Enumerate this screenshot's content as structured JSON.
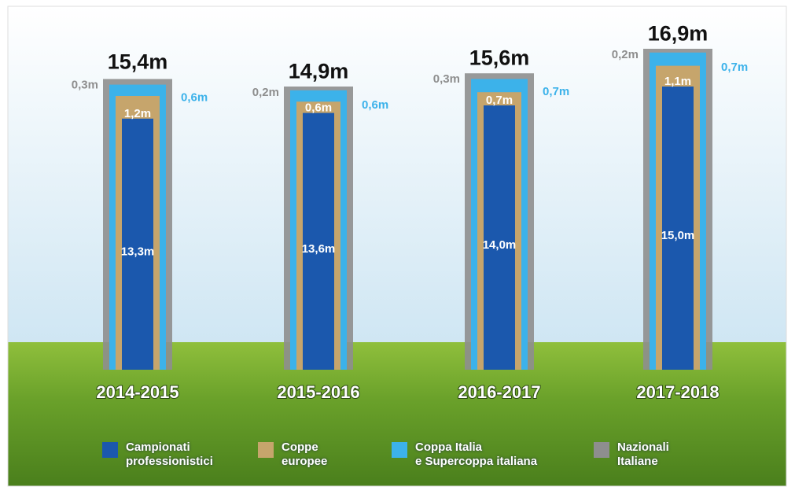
{
  "chart_data": {
    "type": "bar",
    "stacked": true,
    "categories": [
      "2014-2015",
      "2015-2016",
      "2016-2017",
      "2017-2018"
    ],
    "series": [
      {
        "name": "Campionati\nprofessionistici",
        "color": "#1b58ad",
        "values": [
          13.3,
          13.6,
          14.0,
          15.0
        ],
        "value_labels": [
          "13,3m",
          "13,6m",
          "14,0m",
          "15,0m"
        ]
      },
      {
        "name": "Coppe\neuropee",
        "color": "#c6a56c",
        "values": [
          1.2,
          0.6,
          0.7,
          1.1
        ],
        "value_labels": [
          "1,2m",
          "0,6m",
          "0,7m",
          "1,1m"
        ]
      },
      {
        "name": "Coppa Italia\ne Supercoppa italiana",
        "color": "#3cb2ea",
        "values": [
          0.6,
          0.6,
          0.7,
          0.7
        ],
        "value_labels": [
          "0,6m",
          "0,6m",
          "0,7m",
          "0,7m"
        ]
      },
      {
        "name": "Nazionali\nItaliane",
        "color": "#8e8e8e",
        "values": [
          0.3,
          0.2,
          0.3,
          0.2
        ],
        "value_labels": [
          "0,3m",
          "0,2m",
          "0,3m",
          "0,2m"
        ]
      }
    ],
    "totals": [
      15.4,
      14.9,
      15.6,
      16.9
    ],
    "total_labels": [
      "15,4m",
      "14,9m",
      "15,6m",
      "16,9m"
    ],
    "ylim": [
      0,
      19.5
    ]
  }
}
